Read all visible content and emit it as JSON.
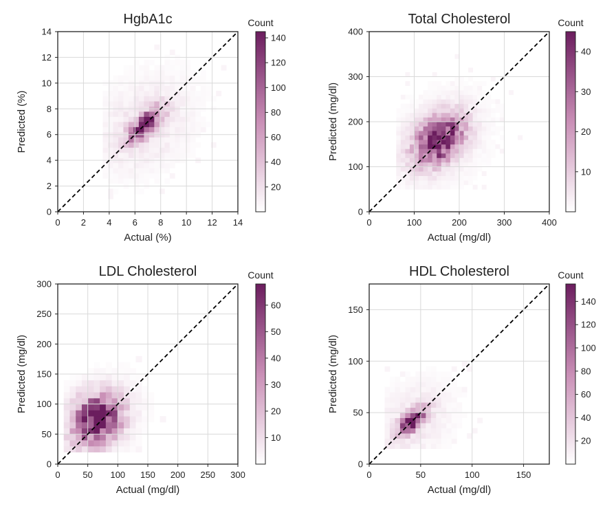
{
  "colors": {
    "cmap_low": "#ffffff",
    "cmap_high": "#6b1d5e",
    "grid": "#d9d9d9",
    "axis": "#222222",
    "identity_line": "#000000"
  },
  "chart_data": [
    {
      "type": "heatmap",
      "title": "HgbA1c",
      "xlabel": "Actual (%)",
      "ylabel": "Predicted (%)",
      "xlim": [
        0,
        14
      ],
      "ylim": [
        0,
        14
      ],
      "xticks": [
        0,
        2,
        4,
        6,
        8,
        10,
        12,
        14
      ],
      "yticks": [
        0,
        2,
        4,
        6,
        8,
        10,
        12,
        14
      ],
      "grid": true,
      "identity_line": true,
      "colorbar": {
        "title": "Count",
        "min": 0,
        "max": 145,
        "ticks": [
          20,
          40,
          60,
          80,
          100,
          120,
          140
        ]
      },
      "bin_size": [
        0.4,
        0.4
      ],
      "density": {
        "peak": [
          6.8,
          6.8
        ],
        "peak_count": 145,
        "spread_along_diagonal": 1.1,
        "spread_across_diagonal": 0.45,
        "tail_spread": 2.8,
        "range": [
          [
            3.5,
            13.5
          ],
          [
            1,
            13
          ]
        ]
      }
    },
    {
      "type": "heatmap",
      "title": "Total Cholesterol",
      "xlabel": "Actual (mg/dl)",
      "ylabel": "Predicted (mg/dl)",
      "xlim": [
        0,
        400
      ],
      "ylim": [
        0,
        400
      ],
      "xticks": [
        0,
        100,
        200,
        300,
        400
      ],
      "yticks": [
        0,
        100,
        200,
        300,
        400
      ],
      "grid": true,
      "identity_line": true,
      "colorbar": {
        "title": "Count",
        "min": 0,
        "max": 45,
        "ticks": [
          10,
          20,
          30,
          40
        ]
      },
      "bin_size": [
        10,
        10
      ],
      "density": {
        "peak": [
          155,
          160
        ],
        "peak_count": 45,
        "spread_along_diagonal": 40,
        "spread_across_diagonal": 28,
        "tail_spread": 75,
        "range": [
          [
            60,
            360
          ],
          [
            50,
            370
          ]
        ]
      }
    },
    {
      "type": "heatmap",
      "title": "LDL Cholesterol",
      "xlabel": "Actual (mg/dl)",
      "ylabel": "Predicted (mg/dl)",
      "xlim": [
        0,
        300
      ],
      "ylim": [
        0,
        300
      ],
      "xticks": [
        0,
        50,
        100,
        150,
        200,
        250,
        300
      ],
      "yticks": [
        0,
        50,
        100,
        150,
        200,
        250,
        300
      ],
      "grid": true,
      "identity_line": true,
      "colorbar": {
        "title": "Count",
        "min": 0,
        "max": 68,
        "ticks": [
          10,
          20,
          30,
          40,
          50,
          60
        ]
      },
      "bin_size": [
        10,
        10
      ],
      "density": {
        "peak": [
          65,
          75
        ],
        "peak_count": 68,
        "spread_along_diagonal": 28,
        "spread_across_diagonal": 24,
        "tail_spread": 50,
        "range": [
          [
            10,
            200
          ],
          [
            20,
            260
          ]
        ]
      }
    },
    {
      "type": "heatmap",
      "title": "HDL Cholesterol",
      "xlabel": "Actual (mg/dl)",
      "ylabel": "Predicted (mg/dl)",
      "xlim": [
        0,
        175
      ],
      "ylim": [
        0,
        175
      ],
      "xticks": [
        0,
        50,
        100,
        150
      ],
      "yticks": [
        0,
        50,
        100,
        150
      ],
      "grid": true,
      "identity_line": true,
      "colorbar": {
        "title": "Count",
        "min": 0,
        "max": 155,
        "ticks": [
          20,
          40,
          60,
          80,
          100,
          120,
          140
        ]
      },
      "bin_size": [
        5,
        5
      ],
      "density": {
        "peak": [
          42,
          42
        ],
        "peak_count": 155,
        "spread_along_diagonal": 11,
        "spread_across_diagonal": 5,
        "tail_spread": 28,
        "range": [
          [
            15,
            135
          ],
          [
            15,
            170
          ]
        ]
      }
    }
  ]
}
